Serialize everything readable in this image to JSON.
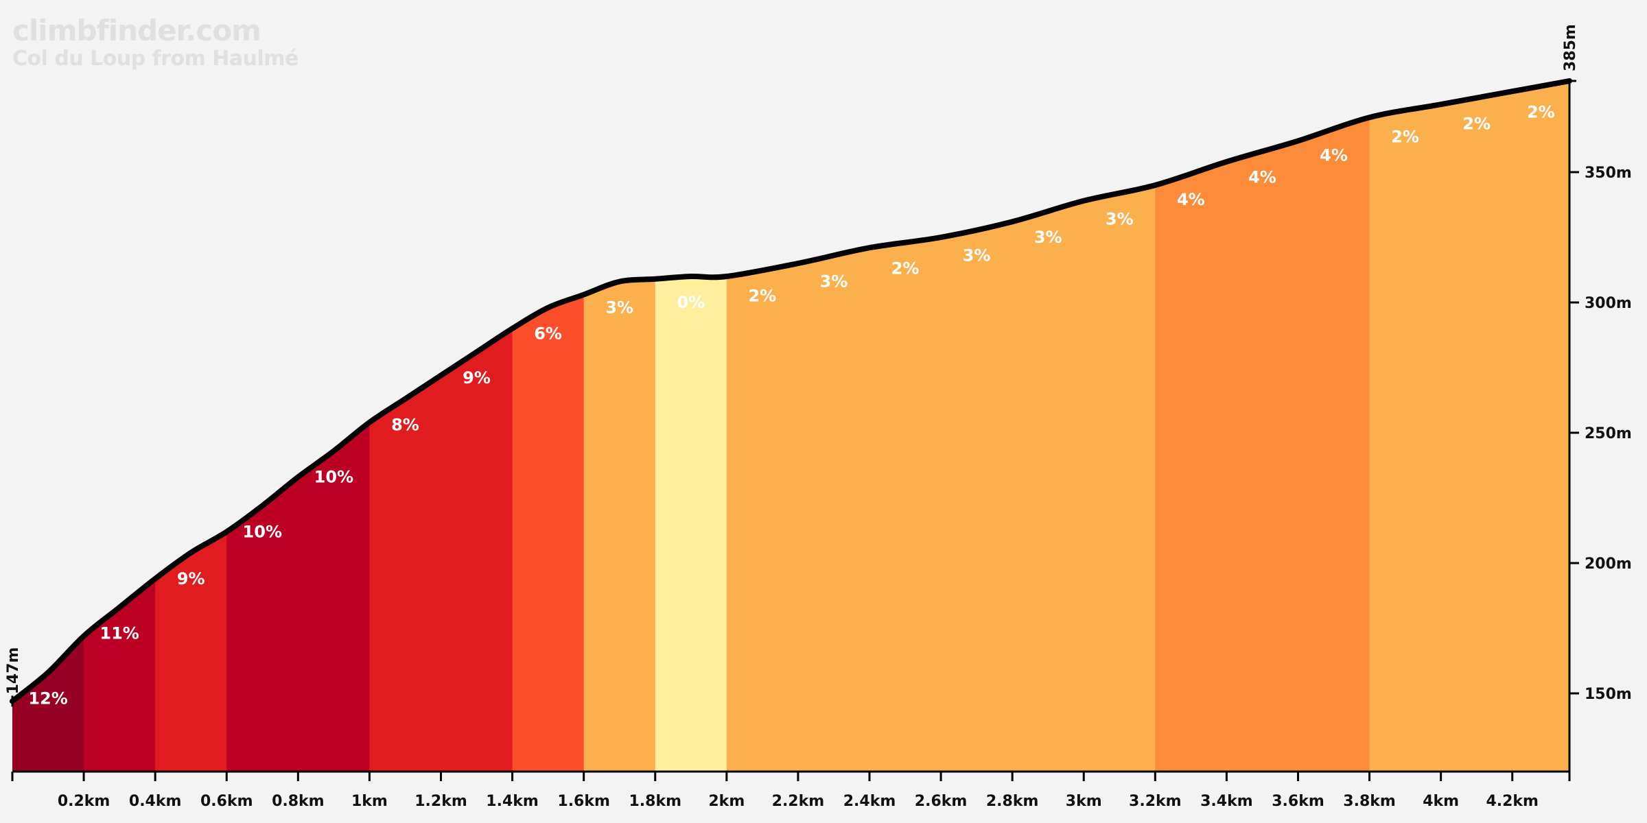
{
  "site": "climbfinder.com",
  "title": "Col du Loup from Haulmé",
  "chart_data": {
    "type": "area",
    "x_unit": "km",
    "y_unit": "m",
    "xlim": [
      0,
      4.36
    ],
    "ylim": [
      120,
      385
    ],
    "start_elevation_label": "147m",
    "end_elevation_label": "385m",
    "x_ticks": [
      "0.2km",
      "0.4km",
      "0.6km",
      "0.8km",
      "1km",
      "1.2km",
      "1.4km",
      "1.6km",
      "1.8km",
      "2km",
      "2.2km",
      "2.4km",
      "2.6km",
      "2.8km",
      "3km",
      "3.2km",
      "3.4km",
      "3.6km",
      "3.8km",
      "4km",
      "4.2km"
    ],
    "y_ticks": [
      "150m",
      "200m",
      "250m",
      "300m",
      "350m"
    ],
    "profile": [
      {
        "x": 0.0,
        "y": 147
      },
      {
        "x": 0.1,
        "y": 158
      },
      {
        "x": 0.2,
        "y": 172
      },
      {
        "x": 0.3,
        "y": 183
      },
      {
        "x": 0.4,
        "y": 194
      },
      {
        "x": 0.5,
        "y": 204
      },
      {
        "x": 0.6,
        "y": 212
      },
      {
        "x": 0.7,
        "y": 222
      },
      {
        "x": 0.8,
        "y": 233
      },
      {
        "x": 0.9,
        "y": 243
      },
      {
        "x": 1.0,
        "y": 254
      },
      {
        "x": 1.1,
        "y": 263
      },
      {
        "x": 1.2,
        "y": 272
      },
      {
        "x": 1.3,
        "y": 281
      },
      {
        "x": 1.4,
        "y": 290
      },
      {
        "x": 1.5,
        "y": 298
      },
      {
        "x": 1.6,
        "y": 303
      },
      {
        "x": 1.7,
        "y": 308
      },
      {
        "x": 1.8,
        "y": 309
      },
      {
        "x": 1.9,
        "y": 310
      },
      {
        "x": 2.0,
        "y": 310
      },
      {
        "x": 2.2,
        "y": 315
      },
      {
        "x": 2.4,
        "y": 321
      },
      {
        "x": 2.6,
        "y": 325
      },
      {
        "x": 2.8,
        "y": 331
      },
      {
        "x": 3.0,
        "y": 339
      },
      {
        "x": 3.2,
        "y": 345
      },
      {
        "x": 3.4,
        "y": 354
      },
      {
        "x": 3.6,
        "y": 362
      },
      {
        "x": 3.8,
        "y": 371
      },
      {
        "x": 4.0,
        "y": 376
      },
      {
        "x": 4.2,
        "y": 381
      },
      {
        "x": 4.36,
        "y": 385
      }
    ],
    "segments": [
      {
        "x0": 0.0,
        "x1": 0.2,
        "gradient": "12%",
        "color": "#970023"
      },
      {
        "x0": 0.2,
        "x1": 0.4,
        "gradient": "11%",
        "color": "#bb0023"
      },
      {
        "x0": 0.4,
        "x1": 0.6,
        "gradient": "9%",
        "color": "#e01c20"
      },
      {
        "x0": 0.6,
        "x1": 0.8,
        "gradient": "10%",
        "color": "#bb0023"
      },
      {
        "x0": 0.8,
        "x1": 1.0,
        "gradient": "10%",
        "color": "#bb0023"
      },
      {
        "x0": 1.0,
        "x1": 1.2,
        "gradient": "8%",
        "color": "#e01c20"
      },
      {
        "x0": 1.2,
        "x1": 1.4,
        "gradient": "9%",
        "color": "#e01c20"
      },
      {
        "x0": 1.4,
        "x1": 1.6,
        "gradient": "6%",
        "color": "#fd4e2c"
      },
      {
        "x0": 1.6,
        "x1": 1.8,
        "gradient": "3%",
        "color": "#fcb04d"
      },
      {
        "x0": 1.8,
        "x1": 2.0,
        "gradient": "0%",
        "color": "#ffee9c"
      },
      {
        "x0": 2.0,
        "x1": 2.2,
        "gradient": "2%",
        "color": "#fcb04d"
      },
      {
        "x0": 2.2,
        "x1": 2.4,
        "gradient": "3%",
        "color": "#fcb04d"
      },
      {
        "x0": 2.4,
        "x1": 2.6,
        "gradient": "2%",
        "color": "#fcb04d"
      },
      {
        "x0": 2.6,
        "x1": 2.8,
        "gradient": "3%",
        "color": "#fcb04d"
      },
      {
        "x0": 2.8,
        "x1": 3.0,
        "gradient": "3%",
        "color": "#fcb04d"
      },
      {
        "x0": 3.0,
        "x1": 3.2,
        "gradient": "3%",
        "color": "#fcb04d"
      },
      {
        "x0": 3.2,
        "x1": 3.4,
        "gradient": "4%",
        "color": "#fc8b3a"
      },
      {
        "x0": 3.4,
        "x1": 3.6,
        "gradient": "4%",
        "color": "#fc8b3a"
      },
      {
        "x0": 3.6,
        "x1": 3.8,
        "gradient": "4%",
        "color": "#fc8b3a"
      },
      {
        "x0": 3.8,
        "x1": 4.0,
        "gradient": "2%",
        "color": "#fcb04d"
      },
      {
        "x0": 4.0,
        "x1": 4.2,
        "gradient": "2%",
        "color": "#fcb04d"
      },
      {
        "x0": 4.2,
        "x1": 4.36,
        "gradient": "2%",
        "color": "#fcb04d"
      }
    ],
    "grid": false,
    "legend": "none"
  }
}
